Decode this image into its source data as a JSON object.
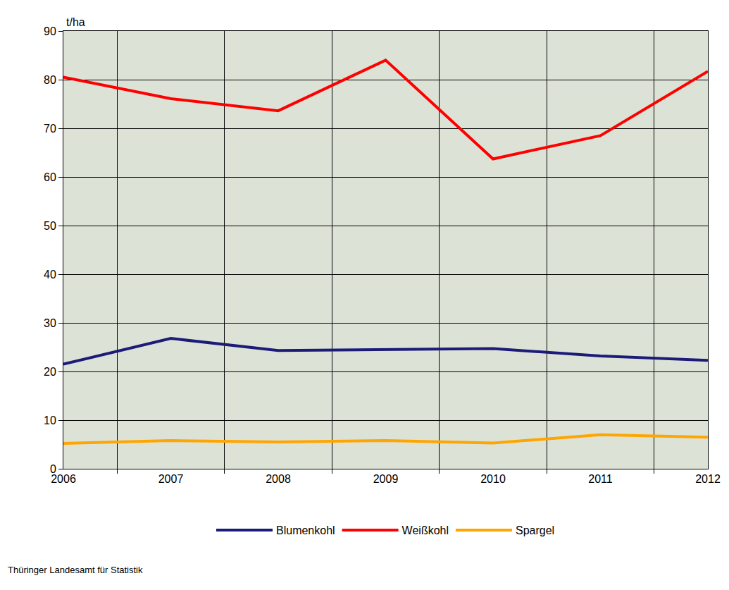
{
  "chart_data": {
    "type": "line",
    "y_label": "t/ha",
    "source": "Thüringer Landesamt für Statistik",
    "categories": [
      "2006",
      "2007",
      "2008",
      "2009",
      "2010",
      "2011",
      "2012"
    ],
    "series": [
      {
        "name": "Blumenkohl",
        "color": "#1c1c78",
        "values": [
          21.5,
          26.8,
          24.3,
          24.5,
          24.7,
          23.2,
          22.3
        ]
      },
      {
        "name": "Weißkohl",
        "color": "#ff0000",
        "values": [
          80.5,
          76.1,
          73.6,
          84.0,
          63.7,
          68.5,
          81.7
        ]
      },
      {
        "name": "Spargel",
        "color": "#ffa500",
        "values": [
          5.2,
          5.8,
          5.5,
          5.8,
          5.3,
          7.0,
          6.5
        ]
      }
    ],
    "ylim": [
      0,
      90
    ],
    "yticks": [
      0,
      10,
      20,
      30,
      40,
      50,
      60,
      70,
      80,
      90
    ],
    "grid": true,
    "legend": "bottom"
  }
}
